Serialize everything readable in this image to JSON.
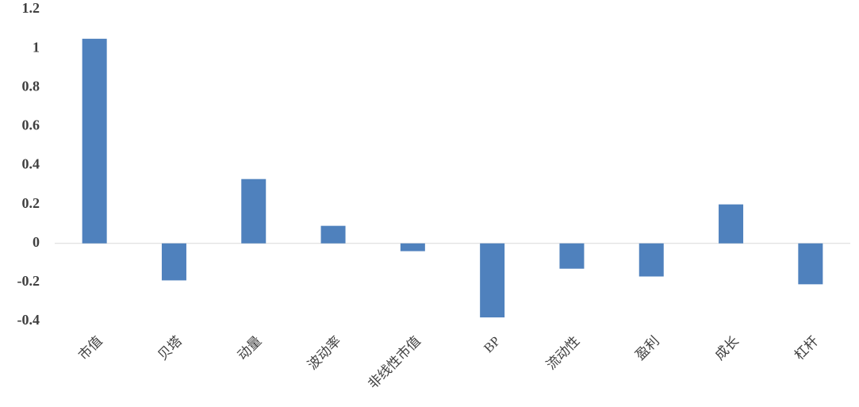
{
  "chart_data": {
    "type": "bar",
    "categories": [
      "市值",
      "贝塔",
      "动量",
      "波动率",
      "非线性市值",
      "BP",
      "流动性",
      "盈利",
      "成长",
      "杠杆"
    ],
    "values": [
      1.05,
      -0.19,
      0.33,
      0.09,
      -0.04,
      -0.38,
      -0.13,
      -0.17,
      0.2,
      -0.21
    ],
    "color": "#4f81bd",
    "ylim": [
      -0.4,
      1.2
    ],
    "yticks": [
      -0.4,
      -0.2,
      0,
      0.2,
      0.4,
      0.6,
      0.8,
      1,
      1.2
    ],
    "grid": false
  }
}
